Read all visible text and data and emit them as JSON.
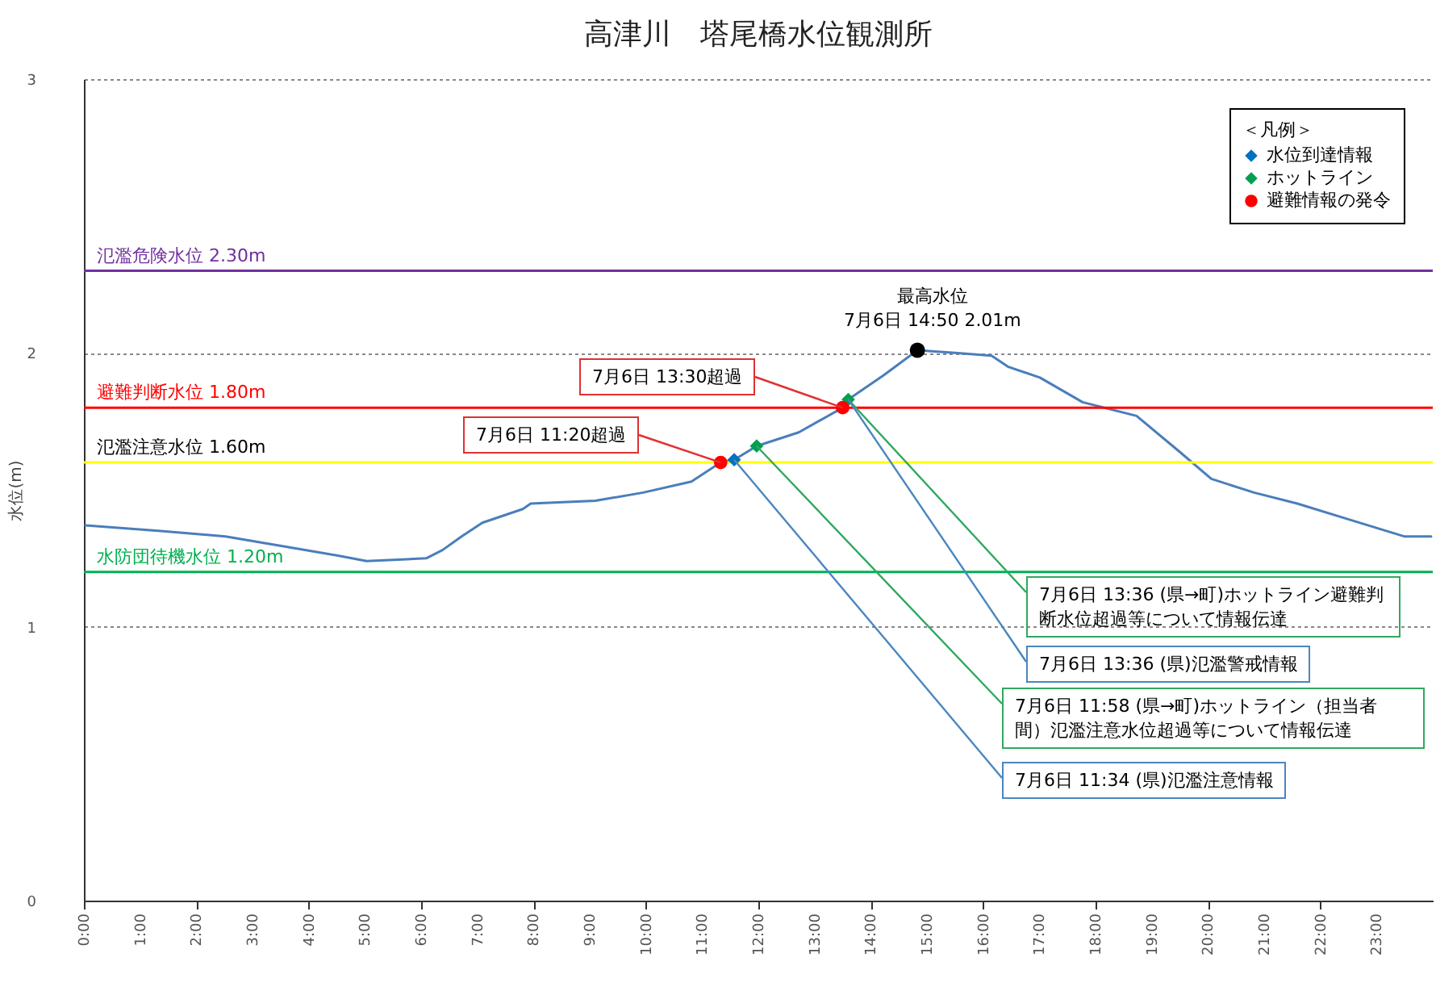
{
  "chart_data": {
    "type": "line",
    "title": "高津川　塔尾橋水位観測所",
    "ylabel": "水位(m)",
    "legend_title": "＜凡例＞",
    "legend": "top right",
    "grid": "y",
    "xlim": [
      0,
      24
    ],
    "ylim": [
      0,
      3
    ],
    "yticks": [
      0,
      1,
      2,
      3
    ],
    "xticks": [
      {
        "value": 0,
        "label": "0:00"
      },
      {
        "value": 1,
        "label": "1:00"
      },
      {
        "value": 2,
        "label": "2:00"
      },
      {
        "value": 3,
        "label": "3:00"
      },
      {
        "value": 4,
        "label": "4:00"
      },
      {
        "value": 5,
        "label": "5:00"
      },
      {
        "value": 6,
        "label": "6:00"
      },
      {
        "value": 7,
        "label": "7:00"
      },
      {
        "value": 8,
        "label": "8:00"
      },
      {
        "value": 9,
        "label": "9:00"
      },
      {
        "value": 10,
        "label": "10:00"
      },
      {
        "value": 11,
        "label": "11:00"
      },
      {
        "value": 12,
        "label": "12:00"
      },
      {
        "value": 13,
        "label": "13:00"
      },
      {
        "value": 14,
        "label": "14:00"
      },
      {
        "value": 15,
        "label": "15:00"
      },
      {
        "value": 16,
        "label": "16:00"
      },
      {
        "value": 17,
        "label": "17:00"
      },
      {
        "value": 18,
        "label": "18:00"
      },
      {
        "value": 19,
        "label": "19:00"
      },
      {
        "value": 20,
        "label": "20:00"
      },
      {
        "value": 21,
        "label": "21:00"
      },
      {
        "value": 22,
        "label": "22:00"
      },
      {
        "value": 23,
        "label": "23:00"
      }
    ],
    "series": [
      {
        "type": "line",
        "color": "#4a7ebb",
        "x": [
          0.03,
          1.37,
          2.52,
          3.66,
          4.52,
          5.03,
          6.09,
          6.38,
          6.72,
          7.09,
          7.81,
          7.95,
          9.1,
          9.95,
          10.81,
          11.33,
          11.57,
          11.97,
          12.72,
          13.5,
          13.6,
          14.24,
          14.83,
          15.5,
          16.15,
          16.44,
          17.01,
          17.77,
          18.73,
          19.49,
          20.06,
          20.82,
          21.59,
          22.54,
          23.49,
          23.97
        ],
        "values": [
          1.37,
          1.35,
          1.33,
          1.29,
          1.26,
          1.24,
          1.25,
          1.28,
          1.33,
          1.38,
          1.43,
          1.45,
          1.46,
          1.49,
          1.53,
          1.6,
          1.61,
          1.66,
          1.71,
          1.8,
          1.83,
          1.92,
          2.01,
          2.0,
          1.99,
          1.95,
          1.91,
          1.82,
          1.77,
          1.64,
          1.54,
          1.49,
          1.45,
          1.39,
          1.33,
          1.33
        ]
      },
      {
        "type": "scatter",
        "name": "水位到達情報",
        "color": "#0070c0",
        "marker": "diamond",
        "x": [
          11.57
        ],
        "values": [
          1.61
        ]
      },
      {
        "type": "scatter",
        "name": "ホットライン",
        "color": "#00a050",
        "marker": "diamond",
        "x": [
          11.97,
          13.6
        ],
        "values": [
          1.66,
          1.83
        ]
      },
      {
        "type": "scatter",
        "name": "避難情報の発令",
        "color": "#ff0000",
        "marker": "circle",
        "x": [
          11.33,
          13.5
        ],
        "values": [
          1.6,
          1.8
        ]
      },
      {
        "type": "scatter",
        "color": "#000000",
        "marker": "circle",
        "x": [
          14.83
        ],
        "values": [
          2.01
        ]
      }
    ],
    "ref_lines": [
      {
        "axis": "y",
        "value": 2.3,
        "label": "氾濫危険水位 2.30m",
        "color": "#7030a0"
      },
      {
        "axis": "y",
        "value": 1.8,
        "label": "避難判断水位 1.80m",
        "color": "#ff0000"
      },
      {
        "axis": "y",
        "value": 1.6,
        "label": "氾濫注意水位 1.60m",
        "color": "#ffff00"
      },
      {
        "axis": "y",
        "value": 1.2,
        "label": "水防団待機水位 1.20m",
        "color": "#00b050"
      }
    ],
    "annotations": [
      {
        "text": "7月6日 11:20超過",
        "x": 11.33,
        "y": 1.6
      },
      {
        "text": "7月6日 13:30超過",
        "x": 13.5,
        "y": 1.8
      },
      {
        "text": "最高水位\n7月6日 14:50 2.01m",
        "x": 14.83,
        "y": 2.01
      },
      {
        "text": "7月6日 13:36 (県→町)ホットライン避難判断水位超過等について情報伝達",
        "x": 13.6,
        "y": 1.83
      },
      {
        "text": "7月6日 13:36 (県)氾濫警戒情報",
        "x": 13.6,
        "y": 1.83
      },
      {
        "text": "7月6日 11:58 (県→町)ホットライン（担当者間）氾濫注意水位超過等について情報伝達",
        "x": 11.97,
        "y": 1.66
      },
      {
        "text": "7月6日 11:34 (県)氾濫注意情報",
        "x": 11.57,
        "y": 1.61
      }
    ]
  }
}
